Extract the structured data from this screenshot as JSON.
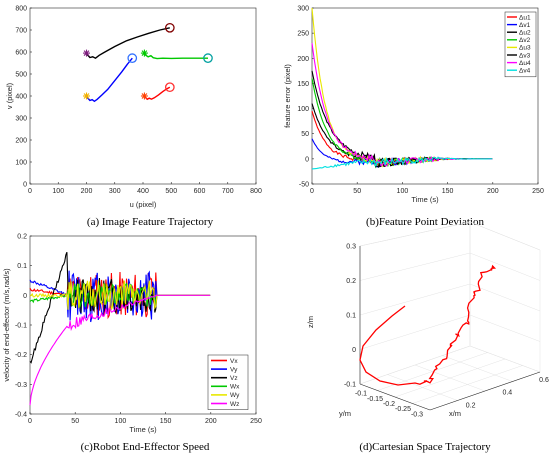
{
  "captions": {
    "a": "(a) Image Feature Trajectory",
    "b": "(b)Feature Point Deviation",
    "c": "(c)Robot End-Effector Speed",
    "d": "(d)Cartesian Space Trajectory"
  },
  "chart_data": [
    {
      "id": "a",
      "type": "line",
      "xlabel": "u (pixel)",
      "ylabel": "v (pixel)",
      "xlim": [
        0,
        800
      ],
      "ylim": [
        0,
        800
      ],
      "xticks": [
        0,
        100,
        200,
        300,
        400,
        500,
        600,
        700,
        800
      ],
      "yticks": [
        0,
        100,
        200,
        300,
        400,
        500,
        600,
        700,
        800
      ],
      "series": [
        {
          "color": "#000000",
          "start": [
            200,
            595
          ],
          "end": [
            495,
            710
          ],
          "points": [
            [
              200,
              595
            ],
            [
              205,
              585
            ],
            [
              212,
              575
            ],
            [
              222,
              578
            ],
            [
              232,
              572
            ],
            [
              245,
              585
            ],
            [
              265,
              600
            ],
            [
              300,
              625
            ],
            [
              340,
              650
            ],
            [
              380,
              668
            ],
            [
              420,
              685
            ],
            [
              460,
              700
            ],
            [
              495,
              710
            ]
          ]
        },
        {
          "color": "#00c800",
          "start": [
            405,
            595
          ],
          "end": [
            630,
            572
          ],
          "points": [
            [
              405,
              595
            ],
            [
              410,
              585
            ],
            [
              418,
              578
            ],
            [
              428,
              583
            ],
            [
              436,
              574
            ],
            [
              450,
              570
            ],
            [
              470,
              572
            ],
            [
              500,
              571
            ],
            [
              540,
              572
            ],
            [
              580,
              572
            ],
            [
              630,
              572
            ]
          ]
        },
        {
          "color": "#0000ff",
          "start": [
            200,
            400
          ],
          "end": [
            362,
            572
          ],
          "points": [
            [
              200,
              400
            ],
            [
              205,
              390
            ],
            [
              212,
              380
            ],
            [
              220,
              383
            ],
            [
              228,
              376
            ],
            [
              238,
              385
            ],
            [
              255,
              405
            ],
            [
              275,
              430
            ],
            [
              300,
              470
            ],
            [
              325,
              510
            ],
            [
              345,
              545
            ],
            [
              362,
              572
            ]
          ]
        },
        {
          "color": "#ff0000",
          "start": [
            405,
            400
          ],
          "end": [
            495,
            440
          ],
          "points": [
            [
              405,
              400
            ],
            [
              410,
              392
            ],
            [
              415,
              385
            ],
            [
              422,
              390
            ],
            [
              430,
              386
            ],
            [
              440,
              392
            ],
            [
              455,
              405
            ],
            [
              470,
              420
            ],
            [
              485,
              433
            ],
            [
              495,
              440
            ]
          ]
        }
      ],
      "start_marker_colors": [
        "#7f1f7f",
        "#00c800",
        "#f0b000",
        "#ff4000"
      ],
      "end_marker_colors": [
        "#800000",
        "#00a0a0",
        "#3070ff",
        "#ff3030"
      ],
      "grid": false
    },
    {
      "id": "b",
      "type": "line",
      "xlabel": "Time (s)",
      "ylabel": "feature error (pixel)",
      "xlim": [
        0,
        250
      ],
      "ylim": [
        -50,
        300
      ],
      "xticks": [
        0,
        50,
        100,
        150,
        200,
        250
      ],
      "yticks": [
        -50,
        0,
        50,
        100,
        150,
        200,
        250,
        300
      ],
      "legend": "top-right",
      "series": [
        {
          "name": "Δu1",
          "color": "#ff0000",
          "start": 95,
          "end_noise": 140,
          "seed": 1
        },
        {
          "name": "Δv1",
          "color": "#0000ff",
          "start": 40,
          "end_noise": 140,
          "seed": 2
        },
        {
          "name": "Δu2",
          "color": "#000000",
          "start": 110,
          "end_noise": 140,
          "seed": 3
        },
        {
          "name": "Δv2",
          "color": "#00c800",
          "start": 160,
          "end_noise": 140,
          "seed": 4
        },
        {
          "name": "Δu3",
          "color": "#e8e800",
          "start": 300,
          "end_noise": 140,
          "seed": 5
        },
        {
          "name": "Δv3",
          "color": "#000000",
          "start": 175,
          "end_noise": 140,
          "seed": 6
        },
        {
          "name": "Δu4",
          "color": "#ff00ff",
          "start": 230,
          "end_noise": 140,
          "seed": 7
        },
        {
          "name": "Δv4",
          "color": "#00e0e0",
          "start": -20,
          "end_noise": 140,
          "seed": 8
        }
      ],
      "grid": false
    },
    {
      "id": "c",
      "type": "line",
      "xlabel": "Time (s)",
      "ylabel": "velocity of end-effector (m/s,rad/s)",
      "xlim": [
        0,
        250
      ],
      "ylim": [
        -0.4,
        0.2
      ],
      "xticks": [
        0,
        50,
        100,
        150,
        200,
        250
      ],
      "yticks": [
        -0.4,
        -0.3,
        -0.2,
        -0.1,
        0,
        0.1,
        0.2
      ],
      "legend": "bottom-right",
      "series": [
        {
          "name": "Vx",
          "color": "#ff0000",
          "start": 0.02,
          "amp": 0.08,
          "seed": 11
        },
        {
          "name": "Vy",
          "color": "#0000ff",
          "start": 0.05,
          "amp": 0.09,
          "seed": 12
        },
        {
          "name": "Vz",
          "color": "#000000",
          "start": -0.23,
          "amp": 0.06,
          "seed": 13
        },
        {
          "name": "Wx",
          "color": "#00c800",
          "start": -0.02,
          "amp": 0.04,
          "seed": 14
        },
        {
          "name": "Wy",
          "color": "#e8e800",
          "start": 0.0,
          "amp": 0.05,
          "seed": 15
        },
        {
          "name": "Wz",
          "color": "#ff00ff",
          "start": -0.37,
          "amp": 0.04,
          "seed": 16
        }
      ],
      "grid": false
    },
    {
      "id": "d",
      "type": "line",
      "xlabel": "x/m",
      "ylabel": "y/m",
      "zlabel": "z/m",
      "xlim": [
        0,
        0.6
      ],
      "ylim": [
        -0.35,
        -0.1
      ],
      "zlim": [
        -0.1,
        0.3
      ],
      "xticks": [
        0.2,
        0.4,
        0.6
      ],
      "yticks": [
        -0.3,
        -0.25,
        -0.2,
        -0.15,
        -0.1
      ],
      "zticks": [
        -0.1,
        0,
        0.1,
        0.2,
        0.3
      ],
      "series": [
        {
          "color": "#ff0000"
        }
      ],
      "grid": true
    }
  ]
}
